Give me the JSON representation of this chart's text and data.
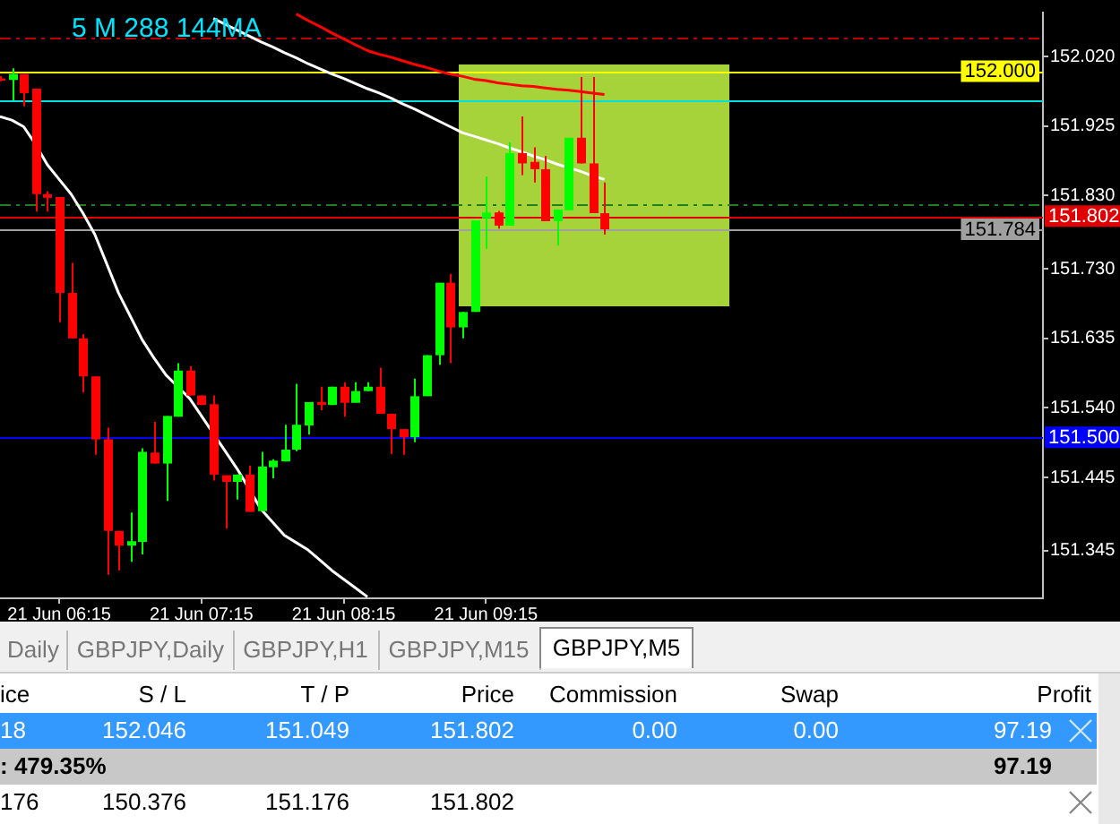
{
  "chart_data": {
    "type": "candlestick",
    "title": "5 M 288 144MA",
    "categories": [
      null,
      null,
      null,
      null,
      null,
      "21 Jun 06:15",
      null,
      null,
      null,
      null,
      null,
      null,
      null,
      null,
      null,
      null,
      null,
      "21 Jun 07:15",
      null,
      null,
      null,
      null,
      null,
      null,
      null,
      null,
      null,
      null,
      null,
      "21 Jun 08:15",
      null,
      null,
      null,
      null,
      null,
      null,
      null,
      null,
      null,
      null,
      null,
      "21 Jun 09:15",
      null,
      null,
      null,
      null,
      null,
      null,
      null,
      null,
      null,
      null,
      null,
      null,
      null,
      null,
      null,
      null,
      null,
      null,
      null,
      null,
      null,
      null,
      null,
      null,
      null,
      null,
      null,
      null,
      null,
      null,
      null,
      null,
      null,
      null,
      null,
      null,
      null,
      null,
      null,
      null,
      null,
      null,
      null,
      null,
      null,
      null,
      null
    ],
    "ohlc": [
      [
        151.99,
        151.993,
        151.986,
        151.987
      ],
      [
        151.988,
        152.004,
        151.96,
        151.996
      ],
      [
        151.996,
        151.996,
        151.952,
        151.97
      ],
      [
        151.976,
        151.976,
        151.808,
        151.832
      ],
      [
        151.832,
        151.836,
        151.808,
        151.827
      ],
      [
        151.828,
        151.828,
        151.657,
        151.697
      ],
      [
        151.697,
        151.738,
        151.635,
        151.635
      ],
      [
        151.635,
        151.641,
        151.561,
        151.583
      ],
      [
        151.583,
        151.583,
        151.476,
        151.497
      ],
      [
        151.497,
        151.513,
        151.312,
        151.372
      ],
      [
        151.372,
        151.372,
        151.318,
        151.352
      ],
      [
        151.352,
        151.397,
        151.33,
        151.358
      ],
      [
        151.357,
        151.485,
        151.34,
        151.48
      ],
      [
        151.479,
        151.521,
        151.464,
        151.464
      ],
      [
        151.464,
        151.529,
        151.413,
        151.529
      ],
      [
        151.528,
        151.601,
        151.528,
        151.591
      ],
      [
        151.591,
        151.597,
        151.557,
        151.557
      ],
      [
        151.557,
        151.557,
        151.544,
        151.544
      ],
      [
        151.545,
        151.557,
        151.441,
        151.449
      ],
      [
        151.448,
        151.448,
        151.375,
        151.439
      ],
      [
        151.439,
        151.449,
        151.415,
        151.449
      ],
      [
        151.449,
        151.461,
        151.398,
        151.398
      ],
      [
        151.399,
        151.48,
        151.399,
        151.46
      ],
      [
        151.459,
        151.47,
        151.444,
        151.468
      ],
      [
        151.467,
        151.517,
        151.467,
        151.483
      ],
      [
        151.483,
        151.573,
        151.481,
        151.517
      ],
      [
        151.516,
        151.548,
        151.504,
        151.548
      ],
      [
        151.548,
        151.569,
        151.537,
        151.544
      ],
      [
        151.544,
        151.569,
        151.544,
        151.569
      ],
      [
        151.569,
        151.575,
        151.528,
        151.547
      ],
      [
        151.547,
        151.575,
        151.547,
        151.563
      ],
      [
        151.563,
        151.575,
        151.563,
        151.569
      ],
      [
        151.569,
        151.595,
        151.532,
        151.532
      ],
      [
        151.532,
        151.532,
        151.477,
        151.511
      ],
      [
        151.511,
        151.511,
        151.476,
        151.5
      ],
      [
        151.5,
        151.58,
        151.493,
        151.556
      ],
      [
        151.556,
        151.612,
        151.556,
        151.612
      ],
      [
        151.612,
        151.711,
        151.599,
        151.711
      ],
      [
        151.711,
        151.723,
        151.601,
        151.65
      ],
      [
        151.65,
        151.671,
        151.635,
        151.671
      ],
      [
        151.671,
        151.796,
        151.671,
        151.796
      ],
      [
        151.799,
        151.856,
        151.757,
        151.807
      ],
      [
        151.807,
        151.809,
        151.785,
        151.789
      ],
      [
        151.789,
        151.903,
        151.789,
        151.888
      ],
      [
        151.888,
        151.938,
        151.858,
        151.874
      ],
      [
        151.876,
        151.896,
        151.848,
        151.866
      ],
      [
        151.866,
        151.884,
        151.795,
        151.795
      ],
      [
        151.795,
        151.811,
        151.762,
        151.811
      ],
      [
        151.81,
        151.909,
        151.81,
        151.909
      ],
      [
        151.909,
        151.992,
        151.874,
        151.874
      ],
      [
        151.874,
        151.992,
        151.806,
        151.806
      ],
      [
        151.806,
        151.848,
        151.777,
        151.784
      ],
      null,
      null,
      null,
      null,
      null,
      null,
      null,
      null,
      null,
      null,
      null,
      null,
      null,
      null,
      null,
      null,
      null,
      null,
      null,
      null,
      null,
      null,
      null,
      null,
      null,
      null,
      null,
      null,
      null,
      null,
      null,
      null,
      null,
      null,
      null,
      null,
      null
    ],
    "colors": [
      "#ff0000",
      "#00ff00",
      "#ff0000",
      "#ff0000",
      "#ff0000",
      "#ff0000",
      "#ff0000",
      "#ff0000",
      "#ff0000",
      "#ff0000",
      "#ff0000",
      "#00ff00",
      "#00ff00",
      "#ff0000",
      "#00ff00",
      "#00ff00",
      "#ff0000",
      "#ff0000",
      "#ff0000",
      "#ff0000",
      "#00ff00",
      "#ff0000",
      "#00ff00",
      "#00ff00",
      "#00ff00",
      "#00ff00",
      "#00ff00",
      "#ff0000",
      "#00ff00",
      "#ff0000",
      "#00ff00",
      "#00ff00",
      "#ff0000",
      "#ff0000",
      "#ff0000",
      "#00ff00",
      "#00ff00",
      "#00ff00",
      "#ff0000",
      "#00ff00",
      "#00ff00",
      "#00ff00",
      "#ff0000",
      "#00ff00",
      "#ff0000",
      "#ff0000",
      "#ff0000",
      "#00ff00",
      "#00ff00",
      "#ff0000",
      "#ff0000",
      "#ff0000",
      null,
      null,
      null,
      null,
      null,
      null,
      null,
      null,
      null,
      null,
      null,
      null,
      null,
      null,
      null,
      null,
      null,
      null,
      null,
      null,
      null,
      null,
      null,
      null,
      null,
      null,
      null,
      null,
      null,
      null,
      null,
      null,
      null,
      null,
      null,
      null,
      null
    ],
    "series": [
      {
        "type": "line",
        "color": "#ffffff",
        "values": [
          151.938,
          151.933,
          151.924,
          151.9,
          151.872,
          151.852,
          151.832,
          151.806,
          151.777,
          151.737,
          151.697,
          151.665,
          151.633,
          151.608,
          151.585,
          151.569,
          151.553,
          151.529,
          151.505,
          151.481,
          151.457,
          151.43,
          151.402,
          151.384,
          151.366,
          151.356,
          151.346,
          151.332,
          151.318,
          151.306,
          151.294,
          151.282,
          null,
          null,
          null,
          null,
          null,
          null,
          null,
          null,
          null,
          null,
          null,
          null,
          null,
          null,
          null,
          null,
          null,
          null,
          null,
          null,
          null,
          null,
          null,
          null,
          null,
          null,
          null,
          null,
          null,
          null,
          null,
          null,
          null,
          null,
          null,
          null,
          null,
          null,
          null,
          null,
          null,
          null,
          null,
          null,
          null,
          null,
          null,
          null,
          null,
          null,
          null,
          null,
          null,
          null,
          null,
          null,
          null
        ]
      },
      {
        "type": "line",
        "color": "#ffffff",
        "values": [
          null,
          null,
          null,
          null,
          null,
          null,
          null,
          null,
          null,
          null,
          null,
          null,
          null,
          null,
          null,
          null,
          null,
          null,
          152.072,
          152.064,
          152.056,
          152.048,
          152.04,
          152.033,
          152.025,
          152.018,
          152.01,
          152.003,
          151.996,
          151.99,
          151.983,
          151.976,
          151.97,
          151.963,
          151.955,
          151.948,
          151.94,
          151.932,
          151.924,
          151.916,
          151.911,
          151.906,
          151.901,
          151.895,
          151.89,
          151.884,
          151.879,
          151.873,
          151.868,
          151.863,
          151.857,
          151.852,
          null,
          null,
          null,
          null,
          null,
          null,
          null,
          null,
          null,
          null,
          null,
          null,
          null,
          null,
          null,
          null,
          null,
          null,
          null,
          null,
          null,
          null,
          null,
          null,
          null,
          null,
          null,
          null,
          null,
          null,
          null,
          null,
          null,
          null,
          null,
          null,
          null
        ]
      },
      {
        "type": "line",
        "color": "#ff0000",
        "values": [
          null,
          null,
          null,
          null,
          null,
          null,
          null,
          null,
          null,
          null,
          null,
          null,
          null,
          null,
          null,
          null,
          null,
          null,
          null,
          null,
          null,
          null,
          null,
          null,
          null,
          152.078,
          152.069,
          152.061,
          152.052,
          152.044,
          152.036,
          152.028,
          152.023,
          152.019,
          152.014,
          152.009,
          152.005,
          152.0,
          151.996,
          151.993,
          151.989,
          151.987,
          151.984,
          151.982,
          151.98,
          151.979,
          151.977,
          151.975,
          151.974,
          151.972,
          151.97,
          151.968,
          null,
          null,
          null,
          null,
          null,
          null,
          null,
          null,
          null,
          null,
          null,
          null,
          null,
          null,
          null,
          null,
          null,
          null,
          null,
          null,
          null,
          null,
          null,
          null,
          null,
          null,
          null,
          null,
          null,
          null,
          null,
          null,
          null,
          null,
          null,
          null,
          null
        ]
      }
    ],
    "ylim": [
      151.28,
      152.08
    ],
    "yticks": [
      {
        "value": 152.02,
        "label": "152.020"
      },
      {
        "value": 151.925,
        "label": "151.925"
      },
      {
        "value": 151.83,
        "label": "151.830"
      },
      {
        "value": 151.73,
        "label": "151.730"
      },
      {
        "value": 151.635,
        "label": "151.635"
      },
      {
        "value": 151.54,
        "label": "151.540"
      },
      {
        "value": 151.445,
        "label": "151.445"
      },
      {
        "value": 151.345,
        "label": "151.345"
      }
    ],
    "ref_lines": [
      {
        "axis": "y",
        "value": 152.046,
        "color": "#c00000",
        "line_style": "dashed"
      },
      {
        "axis": "y",
        "value": 152.0,
        "label": "152.000",
        "color": "#ffff00"
      },
      {
        "axis": "y",
        "value": 151.96,
        "color": "#00e0e0"
      },
      {
        "axis": "y",
        "value": 151.819,
        "color": "#208020",
        "line_style": "dashed"
      },
      {
        "axis": "y",
        "value": 151.802,
        "label": "151.802",
        "color": "#e00000"
      },
      {
        "axis": "y",
        "value": 151.784,
        "label": "151.784",
        "color": "#a0a0a0"
      },
      {
        "axis": "y",
        "value": 151.5,
        "label": "151.500",
        "color": "#0000ff"
      }
    ],
    "annotations": [
      "Daily",
      "GBPJPY,Daily",
      "GBPJPY,H1",
      "GBPJPY,M15",
      "GBPJPY,M5",
      "ice",
      "S / L",
      "T / P",
      "Price",
      "Commission",
      "Swap",
      "Profit",
      "18",
      "152.046",
      "151.049",
      "151.802",
      "0.00",
      "0.00",
      "97.19",
      ": 479.35%",
      "97.19",
      "176",
      "150.376",
      "151.176",
      "151.802"
    ]
  }
}
